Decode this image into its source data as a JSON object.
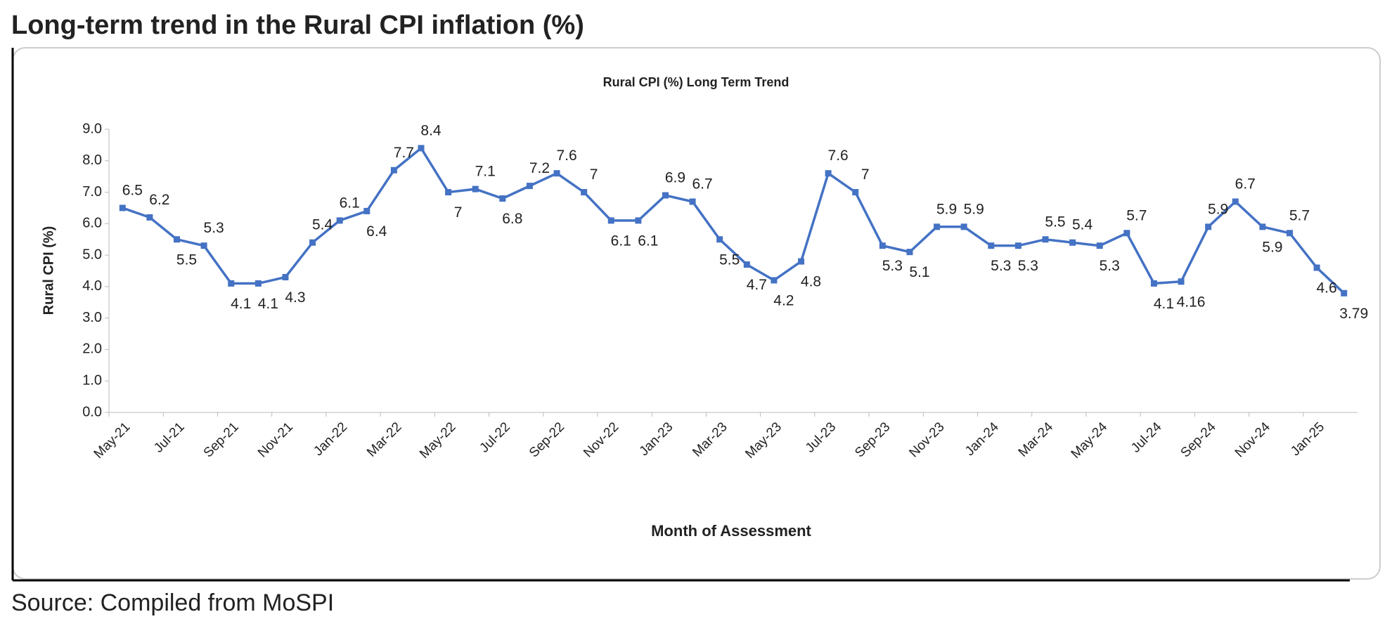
{
  "title": "Long-term trend in the Rural CPI inflation (%)",
  "source": "Source: Compiled from MoSPI",
  "chart_data": {
    "type": "line",
    "title": "Rural CPI (%) Long Term Trend",
    "x_label": "Month of Assessment",
    "y_label": "Rural CPI (%)",
    "categories": [
      "May-21",
      null,
      "Jul-21",
      null,
      "Sep-21",
      null,
      "Nov-21",
      null,
      "Jan-22",
      null,
      "Mar-22",
      null,
      "May-22",
      null,
      "Jul-22",
      null,
      "Sep-22",
      null,
      "Nov-22",
      null,
      "Jan-23",
      null,
      "Mar-23",
      null,
      "May-23",
      null,
      "Jul-23",
      null,
      "Sep-23",
      null,
      "Nov-23",
      null,
      "Jan-24",
      null,
      "Mar-24",
      null,
      "May-24",
      null,
      "Jul-24",
      null,
      "Sep-24",
      null,
      "Nov-24",
      null,
      "Jan-25",
      null
    ],
    "series": [
      {
        "name": "Rural CPI (%)",
        "color": "#4472c4",
        "values": [
          6.5,
          6.2,
          5.5,
          5.3,
          4.1,
          4.1,
          4.3,
          5.4,
          6.1,
          6.4,
          7.7,
          8.4,
          7.0,
          7.1,
          6.8,
          7.2,
          7.6,
          7.0,
          6.1,
          6.1,
          6.9,
          6.7,
          5.5,
          4.7,
          4.2,
          4.8,
          7.6,
          7.0,
          5.3,
          5.1,
          5.9,
          5.9,
          5.3,
          5.3,
          5.5,
          5.4,
          5.3,
          5.7,
          4.1,
          4.16,
          5.9,
          6.7,
          5.9,
          5.7,
          4.6,
          3.79
        ]
      }
    ],
    "ylim": [
      0,
      9
    ],
    "yticks": [
      {
        "value": 0,
        "label": "0.0"
      },
      {
        "value": 1,
        "label": "1.0"
      },
      {
        "value": 2,
        "label": "2.0"
      },
      {
        "value": 3,
        "label": "3.0"
      },
      {
        "value": 4,
        "label": "4.0"
      },
      {
        "value": 5,
        "label": "5.0"
      },
      {
        "value": 6,
        "label": "6.0"
      },
      {
        "value": 7,
        "label": "7.0"
      },
      {
        "value": 8,
        "label": "8.0"
      },
      {
        "value": 9,
        "label": "9.0"
      }
    ],
    "grid": false
  }
}
